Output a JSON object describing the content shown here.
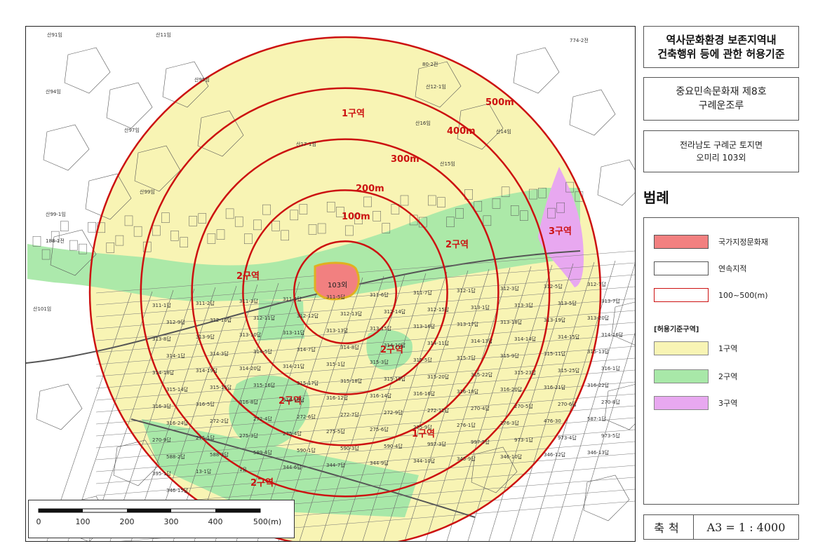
{
  "title": {
    "line1": "역사문화환경 보존지역내",
    "line2": "건축행위 등에 관한 허용기준"
  },
  "heritage": {
    "line1": "중요민속문화재 제8호",
    "line2": "구례운조루"
  },
  "location": {
    "line1": "전라남도 구례군 토지면",
    "line2": "오미리 103외"
  },
  "legend": {
    "heading": "범례",
    "items": [
      {
        "label": "국가지정문화재",
        "color": "#f28080"
      },
      {
        "label": "연속지적",
        "color": "#ffffff"
      },
      {
        "label": "100~500(m)",
        "color": "#ffffff",
        "border": "#cc1111"
      }
    ],
    "zone_heading": "[허용기준구역]",
    "zones": [
      {
        "label": "1구역",
        "color": "#f8f4b4"
      },
      {
        "label": "2구역",
        "color": "#a8e8a8"
      },
      {
        "label": "3구역",
        "color": "#e8a8f0"
      }
    ]
  },
  "scale": {
    "label": "축척",
    "value": "A3 = 1 : 4000"
  },
  "scalebar": {
    "ticks": [
      "0",
      "100",
      "200",
      "300",
      "400",
      "500(m)"
    ]
  },
  "map": {
    "ring_labels": [
      "100m",
      "200m",
      "300m",
      "400m",
      "500m"
    ],
    "zone_labels": [
      "1구역",
      "1구역",
      "2구역",
      "2구역",
      "2구역",
      "2구역",
      "2구역",
      "3구역"
    ],
    "heritage_label": "103외",
    "parcel_labels": [
      "산11임",
      "산95임",
      "산97임",
      "산94임",
      "산91임",
      "산99임",
      "산101임",
      "산99-1임",
      "188-1전",
      "산12-1임",
      "산16임",
      "산14임",
      "산15임",
      "산17-1임",
      "80-2전",
      "774-2전",
      "311-1답",
      "311-2답",
      "311-3답",
      "311-4답",
      "311-5답",
      "311-6답",
      "311-7답",
      "312-1답",
      "312-3답",
      "312-5답",
      "312-7답",
      "312-9답",
      "312-10답",
      "312-11답",
      "312-12답",
      "312-13답",
      "312-14답",
      "312-15답",
      "313-1답",
      "313-3답",
      "313-5답",
      "313-7답",
      "313-8답",
      "313-9답",
      "313-10답",
      "313-11답",
      "313-13답",
      "313-15답",
      "313-16답",
      "313-17답",
      "313-18답",
      "313-19답",
      "313-20답",
      "314-1답",
      "314-3답",
      "314-5답",
      "314-7답",
      "314-8답",
      "314-10답",
      "314-11답",
      "314-13답",
      "314-14답",
      "314-15답",
      "314-16답",
      "314-18답",
      "314-19답",
      "314-20답",
      "314-21답",
      "315-1답",
      "315-3답",
      "315-5답",
      "315-7답",
      "315-9답",
      "315-11답",
      "315-13답",
      "315-14답",
      "315-15답",
      "315-16답",
      "315-17답",
      "315-18답",
      "315-19답",
      "315-20답",
      "315-22답",
      "315-23답",
      "315-25답",
      "316-1답",
      "316-3답",
      "316-5답",
      "316-8답",
      "316-10답",
      "316-12답",
      "316-14답",
      "316-16답",
      "316-18답",
      "316-20답",
      "316-21답",
      "316-22답",
      "316-24답",
      "272-2답",
      "272-4답",
      "272-6답",
      "272-7답",
      "272-9답",
      "272-12답",
      "270-4답",
      "270-5답",
      "270-6답",
      "270-8답",
      "270-9답",
      "275-1답",
      "275-3답",
      "275-4답",
      "275-5답",
      "275-6답",
      "275-9답",
      "276-1답",
      "276-3답",
      "476-30",
      "587-1답",
      "588-2답",
      "588-3답",
      "589-4답",
      "590-1답",
      "590-3답",
      "590-4답",
      "997-3답",
      "997-5답",
      "973-1답",
      "973-4답",
      "973-5답",
      "395-1답",
      "13-1답",
      "1유",
      "344-6답",
      "344-7답",
      "344-9답",
      "344-10답",
      "345-9답",
      "346-10답",
      "346-12답",
      "346-13답",
      "346-15답"
    ]
  }
}
